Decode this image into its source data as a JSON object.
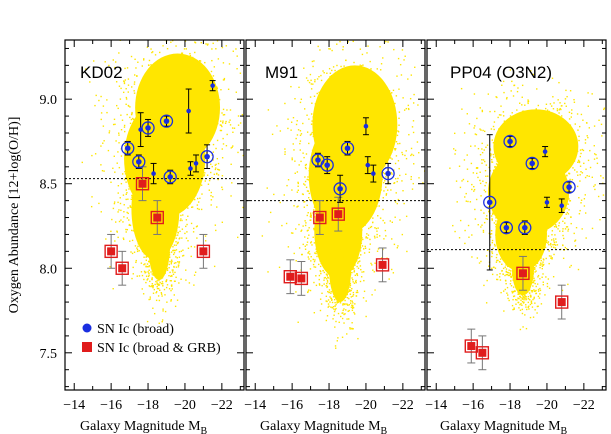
{
  "chart_data": {
    "type": "scatter",
    "ylabel": "Oxygen Abundance [12+log(O/H)]",
    "xlabel": "Galaxy Magnitude M",
    "xlabel_sub": "B",
    "xlim": [
      -13.5,
      -23.2
    ],
    "ylim": [
      7.28,
      9.35
    ],
    "xticks": [
      -14,
      -16,
      -18,
      -20,
      -22
    ],
    "xtick_labels": [
      "−14",
      "−16",
      "−18",
      "−20",
      "−22"
    ],
    "yticks": [
      7.5,
      8.0,
      8.5,
      9.0
    ],
    "ytick_labels": [
      "7.5",
      "8.0",
      "8.5",
      "9.0"
    ],
    "legend": {
      "entries": [
        {
          "label": "SN Ic (broad)",
          "color": "#1a2ee0",
          "marker": "circle"
        },
        {
          "label": "SN Ic (broad & GRB)",
          "color": "#e01c1c",
          "marker": "square"
        }
      ],
      "location": "lower-left of first panel"
    },
    "colors": {
      "sdss": "#ffe600",
      "broad": "#1a2ee0",
      "grb": "#e01c1c",
      "grb_err": "#777777"
    },
    "panels": [
      {
        "title": "KD02",
        "threshold": 8.53,
        "sdss_blobs": [
          {
            "cx": -19.6,
            "cy": 8.95,
            "rx": 2.3,
            "ry": 0.32
          },
          {
            "cx": -18.9,
            "cy": 8.65,
            "rx": 2.2,
            "ry": 0.35
          },
          {
            "cx": -18.4,
            "cy": 8.35,
            "rx": 1.3,
            "ry": 0.3
          },
          {
            "cx": -18.6,
            "cy": 8.15,
            "rx": 0.6,
            "ry": 0.22
          }
        ],
        "broad": [
          {
            "x": -16.9,
            "y": 8.71,
            "err": 0.04,
            "circled": true
          },
          {
            "x": -17.5,
            "y": 8.63,
            "err": 0.04,
            "circled": true
          },
          {
            "x": -17.6,
            "y": 8.82,
            "err": 0.1,
            "circled": false
          },
          {
            "x": -18.0,
            "y": 8.83,
            "err": 0.05,
            "circled": true
          },
          {
            "x": -18.3,
            "y": 8.56,
            "err": 0.06,
            "circled": false
          },
          {
            "x": -19.0,
            "y": 8.87,
            "err": 0.03,
            "circled": true
          },
          {
            "x": -19.2,
            "y": 8.54,
            "err": 0.04,
            "circled": true
          },
          {
            "x": -20.2,
            "y": 8.93,
            "err": 0.13,
            "circled": false
          },
          {
            "x": -20.3,
            "y": 8.59,
            "err": 0.04,
            "circled": false
          },
          {
            "x": -20.6,
            "y": 8.62,
            "err": 0.05,
            "circled": false
          },
          {
            "x": -21.2,
            "y": 8.66,
            "err": 0.07,
            "circled": true
          },
          {
            "x": -21.5,
            "y": 9.08,
            "err": 0.03,
            "circled": false
          }
        ],
        "grb": [
          {
            "x": -16.0,
            "y": 8.1,
            "err": 0.1
          },
          {
            "x": -16.6,
            "y": 8.0,
            "err": 0.1
          },
          {
            "x": -17.7,
            "y": 8.5,
            "err": 0.1
          },
          {
            "x": -18.5,
            "y": 8.3,
            "err": 0.1
          },
          {
            "x": -21.0,
            "y": 8.1,
            "err": 0.1
          }
        ]
      },
      {
        "title": "M91",
        "threshold": 8.4,
        "sdss_blobs": [
          {
            "cx": -19.4,
            "cy": 8.85,
            "rx": 2.3,
            "ry": 0.35
          },
          {
            "cx": -18.9,
            "cy": 8.55,
            "rx": 2.0,
            "ry": 0.35
          },
          {
            "cx": -18.5,
            "cy": 8.22,
            "rx": 1.3,
            "ry": 0.28
          },
          {
            "cx": -18.6,
            "cy": 8.0,
            "rx": 0.6,
            "ry": 0.2
          }
        ],
        "broad": [
          {
            "x": -17.4,
            "y": 8.64,
            "err": 0.04,
            "circled": true
          },
          {
            "x": -17.9,
            "y": 8.61,
            "err": 0.05,
            "circled": true
          },
          {
            "x": -18.6,
            "y": 8.47,
            "err": 0.08,
            "circled": true
          },
          {
            "x": -19.0,
            "y": 8.71,
            "err": 0.04,
            "circled": true
          },
          {
            "x": -20.0,
            "y": 8.84,
            "err": 0.05,
            "circled": false
          },
          {
            "x": -20.1,
            "y": 8.61,
            "err": 0.05,
            "circled": false
          },
          {
            "x": -20.4,
            "y": 8.56,
            "err": 0.05,
            "circled": false
          },
          {
            "x": -21.2,
            "y": 8.56,
            "err": 0.06,
            "circled": true
          }
        ],
        "grb": [
          {
            "x": -15.9,
            "y": 7.95,
            "err": 0.1
          },
          {
            "x": -16.5,
            "y": 7.94,
            "err": 0.1
          },
          {
            "x": -17.5,
            "y": 8.3,
            "err": 0.1
          },
          {
            "x": -18.5,
            "y": 8.32,
            "err": 0.1
          },
          {
            "x": -20.9,
            "y": 8.02,
            "err": 0.1
          }
        ]
      },
      {
        "title": "PP04 (O3N2)",
        "threshold": 8.11,
        "sdss_blobs": [
          {
            "cx": -19.4,
            "cy": 8.72,
            "rx": 2.3,
            "ry": 0.22
          },
          {
            "cx": -19.0,
            "cy": 8.45,
            "rx": 2.2,
            "ry": 0.25
          },
          {
            "cx": -18.6,
            "cy": 8.2,
            "rx": 1.4,
            "ry": 0.22
          },
          {
            "cx": -18.7,
            "cy": 8.0,
            "rx": 0.6,
            "ry": 0.16
          }
        ],
        "broad": [
          {
            "x": -16.9,
            "y": 8.39,
            "err": 0.4,
            "circled": true
          },
          {
            "x": -17.8,
            "y": 8.24,
            "err": 0.03,
            "circled": true
          },
          {
            "x": -18.0,
            "y": 8.75,
            "err": 0.03,
            "circled": true
          },
          {
            "x": -18.8,
            "y": 8.24,
            "err": 0.04,
            "circled": true
          },
          {
            "x": -19.2,
            "y": 8.62,
            "err": 0.03,
            "circled": true
          },
          {
            "x": -19.9,
            "y": 8.69,
            "err": 0.03,
            "circled": false
          },
          {
            "x": -20.0,
            "y": 8.39,
            "err": 0.03,
            "circled": false
          },
          {
            "x": -20.8,
            "y": 8.37,
            "err": 0.04,
            "circled": false
          },
          {
            "x": -21.2,
            "y": 8.48,
            "err": 0.03,
            "circled": true
          }
        ],
        "grb": [
          {
            "x": -15.9,
            "y": 7.54,
            "err": 0.1
          },
          {
            "x": -16.5,
            "y": 7.5,
            "err": 0.1
          },
          {
            "x": -18.7,
            "y": 7.97,
            "err": 0.1
          },
          {
            "x": -20.8,
            "y": 7.8,
            "err": 0.1
          }
        ]
      }
    ]
  }
}
